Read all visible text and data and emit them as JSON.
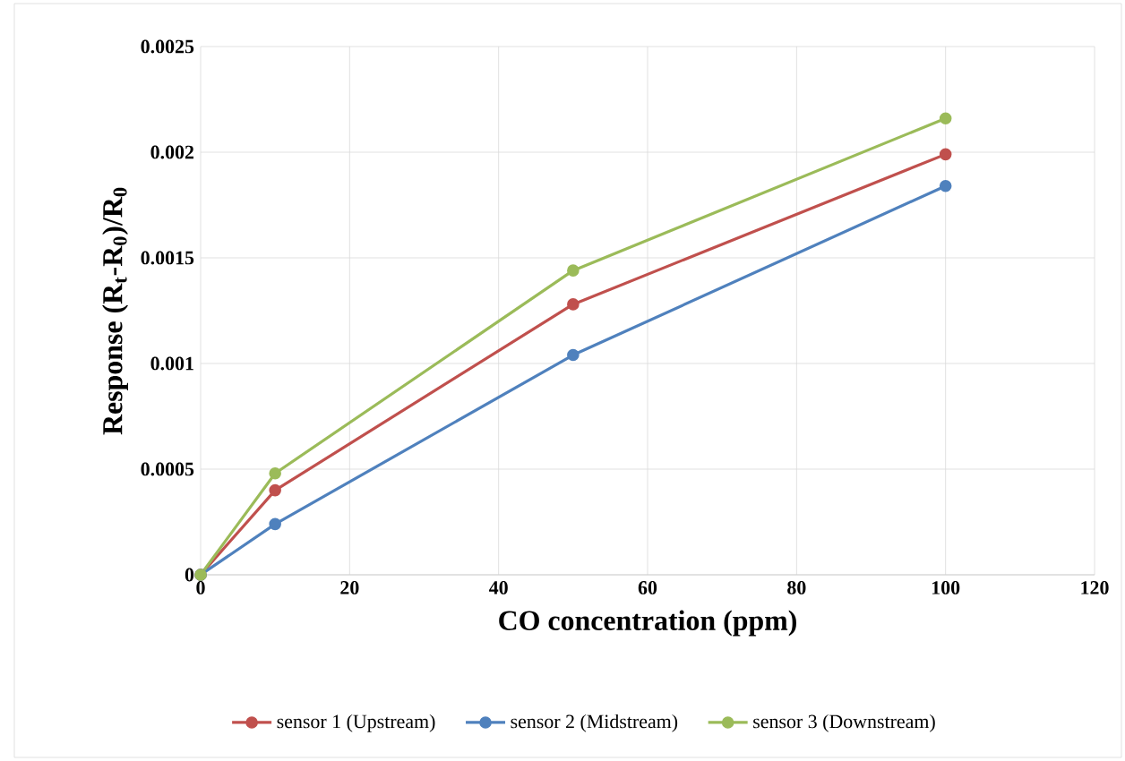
{
  "chart_data": {
    "type": "line",
    "xlabel": "CO concentration  (ppm)",
    "ylabel": "Response (R$_{t}$-R$_{0}$)/R$_{0}$",
    "x": [
      0,
      10,
      50,
      100
    ],
    "series": [
      {
        "name": "sensor 1 (Upstream)",
        "color": "#c0504d",
        "values": [
          0,
          0.0004,
          0.00128,
          0.00199
        ]
      },
      {
        "name": "sensor 2 (Midstream)",
        "color": "#4f81bd",
        "values": [
          0,
          0.00024,
          0.00104,
          0.00184
        ]
      },
      {
        "name": "sensor 3 (Downstream)",
        "color": "#9bbb59",
        "values": [
          0,
          0.00048,
          0.00144,
          0.00216
        ]
      }
    ],
    "xlim": [
      0,
      120
    ],
    "xticks": [
      0,
      20,
      40,
      60,
      80,
      100,
      120
    ],
    "ylim": [
      0,
      0.0025
    ],
    "yticks": [
      0,
      0.0005,
      0.001,
      0.0015,
      0.002,
      0.0025
    ],
    "grid": true,
    "legend": "bottom",
    "marker": "circle",
    "line_style": "solid"
  }
}
